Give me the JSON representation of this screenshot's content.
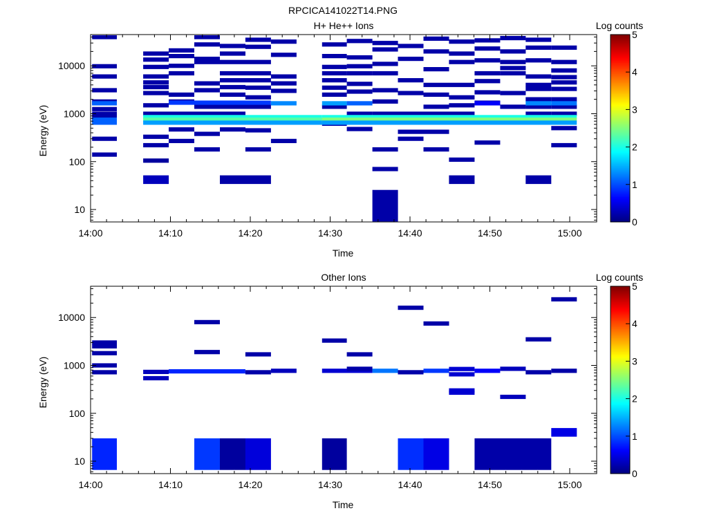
{
  "figure_title": "RPCICA141022T14.PNG",
  "colors": {
    "colormap": [
      "#00007f",
      "#0000ff",
      "#007fff",
      "#00ffff",
      "#7fff7f",
      "#ffff00",
      "#ff7f00",
      "#ff0000",
      "#7f0000"
    ]
  },
  "chart_data": [
    {
      "type": "heatmap",
      "title": "H+ He++ Ions",
      "xlabel": "Time",
      "ylabel": "Energy (eV)",
      "yscale": "log",
      "ylim": [
        5.5,
        45000
      ],
      "xlim_minutes": [
        0,
        63
      ],
      "xticks": [
        "14:00",
        "14:10",
        "14:20",
        "14:30",
        "14:40",
        "14:50",
        "15:00"
      ],
      "yticks": [
        "10",
        "100",
        "1000",
        "10000"
      ],
      "colorbar": {
        "label": "Log counts",
        "range": [
          0,
          5
        ],
        "ticks": [
          "0",
          "1",
          "2",
          "3",
          "4",
          "5"
        ]
      },
      "cells": [
        {
          "t": 0.1,
          "dt": 3.1,
          "e": [
            40000,
            9800,
            6000,
            3100,
            1800,
            1650,
            1250,
            1000,
            820,
            720,
            300,
            140
          ],
          "v": 0.2
        },
        {
          "t": 0.1,
          "dt": 3.1,
          "e": [
            1650,
            750,
            650
          ],
          "v": 1.1
        },
        {
          "t": 6.5,
          "dt": 3.2,
          "e": [
            18000,
            13500,
            9500,
            6000,
            4500,
            3600,
            2700,
            1500,
            1000,
            330,
            220
          ],
          "v": 0.2
        },
        {
          "t": 6.5,
          "dt": 3.2,
          "e": [
            105
          ],
          "v": 0.15
        },
        {
          "t": 6.5,
          "dt": 3.2,
          "e": [
            42
          ],
          "v": 0.3
        },
        {
          "t": 9.7,
          "dt": 3.2,
          "e": [
            21000,
            16000,
            10000,
            7000,
            2500,
            1800,
            1000,
            470,
            270
          ],
          "v": 0.2
        },
        {
          "t": 12.9,
          "dt": 3.2,
          "e": [
            40000,
            28000,
            14000,
            12000,
            4300,
            3100,
            1400,
            1000,
            380,
            180
          ],
          "v": 0.2
        },
        {
          "t": 16.1,
          "dt": 3.2,
          "e": [
            26000,
            18000,
            12000,
            7000,
            5000,
            3600,
            2500,
            1400,
            1000,
            470
          ],
          "v": 0.2
        },
        {
          "t": 16.1,
          "dt": 3.2,
          "e": [
            42
          ],
          "v": 0.2
        },
        {
          "t": 19.3,
          "dt": 3.2,
          "e": [
            35000,
            25000,
            12000,
            7000,
            5000,
            3500,
            2200,
            1400,
            450,
            180
          ],
          "v": 0.2
        },
        {
          "t": 19.3,
          "dt": 3.2,
          "e": [
            42
          ],
          "v": 0.2
        },
        {
          "t": 22.5,
          "dt": 3.2,
          "e": [
            32000,
            17000,
            6000,
            4300,
            3000,
            270
          ],
          "v": 0.2
        },
        {
          "t": 22.5,
          "dt": 3.2,
          "e": [
            1650
          ],
          "v": 1.3
        },
        {
          "t": 28.9,
          "dt": 3.1,
          "e": [
            28000,
            16000,
            9500,
            7000,
            5000,
            3500,
            2500,
            1400,
            750,
            620
          ],
          "v": 0.2
        },
        {
          "t": 32.0,
          "dt": 3.2,
          "e": [
            33000,
            15000,
            9800,
            7000,
            4200,
            2900,
            1000,
            480
          ],
          "v": 0.2
        },
        {
          "t": 35.2,
          "dt": 3.2,
          "e": [
            30000,
            22000,
            11000,
            7000,
            3100,
            1800,
            1000,
            180
          ],
          "v": 0.2
        },
        {
          "t": 35.2,
          "dt": 3.2,
          "e": [
            70
          ],
          "v": 0.2
        },
        {
          "t": 35.2,
          "dt": 3.2,
          "e": [
            12
          ],
          "v": 0.2
        },
        {
          "t": 38.4,
          "dt": 3.2,
          "e": [
            26000,
            14000,
            5000,
            2700,
            1000,
            420,
            300
          ],
          "v": 0.2
        },
        {
          "t": 41.6,
          "dt": 3.2,
          "e": [
            37000,
            20000,
            8500,
            4000,
            2500,
            1400,
            1000,
            420,
            180
          ],
          "v": 0.2
        },
        {
          "t": 44.8,
          "dt": 3.2,
          "e": [
            32000,
            18000,
            12000,
            4000,
            2200,
            1500,
            1000,
            110
          ],
          "v": 0.2
        },
        {
          "t": 44.8,
          "dt": 3.2,
          "e": [
            42
          ],
          "v": 0.2
        },
        {
          "t": 48.0,
          "dt": 3.2,
          "e": [
            34000,
            23000,
            13000,
            7000,
            4800,
            2800,
            1700,
            250
          ],
          "v": 0.2
        },
        {
          "t": 48.0,
          "dt": 3.2,
          "e": [
            1650
          ],
          "v": 0.6
        },
        {
          "t": 51.2,
          "dt": 3.2,
          "e": [
            38000,
            20000,
            12000,
            9000,
            7000,
            2700,
            1400
          ],
          "v": 0.2
        },
        {
          "t": 54.4,
          "dt": 3.2,
          "e": [
            35000,
            24000,
            13000,
            6000,
            4000,
            3300,
            2000,
            1400,
            1000
          ],
          "v": 0.2
        },
        {
          "t": 54.4,
          "dt": 3.2,
          "e": [
            42
          ],
          "v": 0.2
        },
        {
          "t": 54.4,
          "dt": 3.2,
          "e": [
            1650
          ],
          "v": 1.3
        },
        {
          "t": 57.6,
          "dt": 3.2,
          "e": [
            24000,
            12000,
            8000,
            5800,
            4500,
            3300,
            2000,
            1400,
            1000,
            500,
            220
          ],
          "v": 0.2
        },
        {
          "t": 57.6,
          "dt": 3.2,
          "e": [
            1650
          ],
          "v": 1.2
        },
        {
          "t": 6.5,
          "dt": 22.4,
          "e": [
            850
          ],
          "v": 2.0
        },
        {
          "t": 6.5,
          "dt": 22.4,
          "e": [
            750
          ],
          "v": 2.3
        },
        {
          "t": 6.5,
          "dt": 22.4,
          "e": [
            650
          ],
          "v": 1.4
        },
        {
          "t": 28.9,
          "dt": 31.9,
          "e": [
            850
          ],
          "v": 2.0
        },
        {
          "t": 28.9,
          "dt": 31.9,
          "e": [
            750
          ],
          "v": 2.5
        },
        {
          "t": 28.9,
          "dt": 31.9,
          "e": [
            650
          ],
          "v": 1.4
        },
        {
          "t": 28.9,
          "dt": 3.1,
          "e": [
            1650
          ],
          "v": 1.4
        },
        {
          "t": 32.0,
          "dt": 3.2,
          "e": [
            1650
          ],
          "v": 1.1
        },
        {
          "t": 9.7,
          "dt": 12.8,
          "e": [
            1700
          ],
          "v": 0.9
        }
      ]
    },
    {
      "type": "heatmap",
      "title": "Other Ions",
      "xlabel": "Time",
      "ylabel": "Energy (eV)",
      "yscale": "log",
      "ylim": [
        5.5,
        45000
      ],
      "xlim_minutes": [
        0,
        63
      ],
      "xticks": [
        "14:00",
        "14:10",
        "14:20",
        "14:30",
        "14:40",
        "14:50",
        "15:00"
      ],
      "yticks": [
        "10",
        "100",
        "1000",
        "10000"
      ],
      "colorbar": {
        "label": "Log counts",
        "range": [
          0,
          5
        ],
        "ticks": [
          "0",
          "1",
          "2",
          "3",
          "4",
          "5"
        ]
      },
      "cells": [
        {
          "t": 0.1,
          "dt": 3.1,
          "e": [
            3000,
            2500,
            1800,
            1000,
            720
          ],
          "v": 0.2
        },
        {
          "t": 6.5,
          "dt": 3.2,
          "e": [
            730,
            540
          ],
          "v": 0.3
        },
        {
          "t": 9.7,
          "dt": 9.6,
          "e": [
            750
          ],
          "v": 0.8
        },
        {
          "t": 12.9,
          "dt": 3.2,
          "e": [
            8000,
            1900
          ],
          "v": 0.2
        },
        {
          "t": 19.3,
          "dt": 3.2,
          "e": [
            1700,
            720
          ],
          "v": 0.2
        },
        {
          "t": 22.5,
          "dt": 3.2,
          "e": [
            770
          ],
          "v": 0.3
        },
        {
          "t": 28.9,
          "dt": 3.1,
          "e": [
            3300
          ],
          "v": 0.2
        },
        {
          "t": 28.9,
          "dt": 6.3,
          "e": [
            770
          ],
          "v": 0.4
        },
        {
          "t": 32.0,
          "dt": 3.2,
          "e": [
            1700,
            850
          ],
          "v": 0.2
        },
        {
          "t": 35.2,
          "dt": 3.2,
          "e": [
            770
          ],
          "v": 1.2
        },
        {
          "t": 38.4,
          "dt": 3.2,
          "e": [
            16000,
            720
          ],
          "v": 0.2
        },
        {
          "t": 41.6,
          "dt": 3.2,
          "e": [
            7500
          ],
          "v": 0.2
        },
        {
          "t": 41.6,
          "dt": 3.2,
          "e": [
            770
          ],
          "v": 0.9
        },
        {
          "t": 44.8,
          "dt": 3.2,
          "e": [
            840,
            650,
            300,
            270
          ],
          "v": 0.4
        },
        {
          "t": 48.0,
          "dt": 3.2,
          "e": [
            770
          ],
          "v": 0.6
        },
        {
          "t": 51.2,
          "dt": 3.2,
          "e": [
            850,
            220
          ],
          "v": 0.3
        },
        {
          "t": 54.4,
          "dt": 3.2,
          "e": [
            3500,
            720
          ],
          "v": 0.2
        },
        {
          "t": 57.6,
          "dt": 3.2,
          "e": [
            24000,
            770
          ],
          "v": 0.2
        },
        {
          "t": 0.1,
          "dt": 3.1,
          "e": [
            14
          ],
          "v": 0.8
        },
        {
          "t": 12.9,
          "dt": 3.2,
          "e": [
            14
          ],
          "v": 0.9
        },
        {
          "t": 16.1,
          "dt": 3.2,
          "e": [
            14
          ],
          "v": 0.15
        },
        {
          "t": 19.3,
          "dt": 3.2,
          "e": [
            14
          ],
          "v": 0.45
        },
        {
          "t": 28.9,
          "dt": 3.1,
          "e": [
            14
          ],
          "v": 0.15
        },
        {
          "t": 38.4,
          "dt": 3.2,
          "e": [
            14
          ],
          "v": 0.85
        },
        {
          "t": 41.6,
          "dt": 3.2,
          "e": [
            14
          ],
          "v": 0.5
        },
        {
          "t": 48.0,
          "dt": 9.6,
          "e": [
            14
          ],
          "v": 0.2
        },
        {
          "t": 57.6,
          "dt": 3.2,
          "e": [
            40
          ],
          "v": 0.5
        }
      ]
    }
  ]
}
